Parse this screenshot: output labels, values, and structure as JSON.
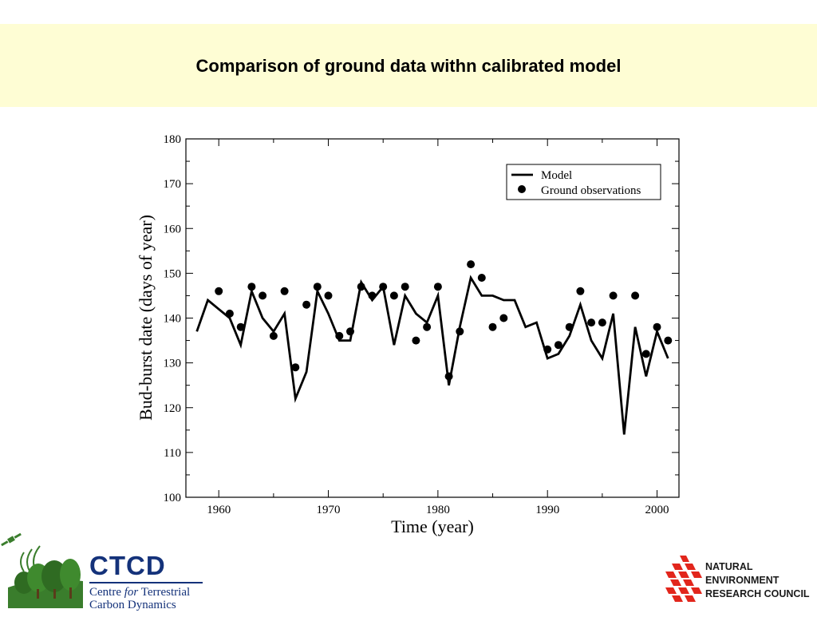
{
  "slide": {
    "title": "Comparison of ground data withn calibrated model"
  },
  "chart_data": {
    "type": "line",
    "title": "",
    "xlabel": "Time (year)",
    "ylabel": "Bud-burst date (days of year)",
    "xlim": [
      1957,
      2002
    ],
    "ylim": [
      100,
      180
    ],
    "xticks": [
      1960,
      1970,
      1980,
      1990,
      2000
    ],
    "yticks": [
      100,
      110,
      120,
      130,
      140,
      150,
      160,
      170,
      180
    ],
    "grid": false,
    "legend_position": "top-right",
    "series": [
      {
        "name": "Model",
        "style": "line",
        "x": [
          1958,
          1959,
          1960,
          1961,
          1962,
          1963,
          1964,
          1965,
          1966,
          1967,
          1968,
          1969,
          1970,
          1971,
          1972,
          1973,
          1974,
          1975,
          1976,
          1977,
          1978,
          1979,
          1980,
          1981,
          1982,
          1983,
          1984,
          1985,
          1986,
          1987,
          1988,
          1989,
          1990,
          1991,
          1992,
          1993,
          1994,
          1995,
          1996,
          1997,
          1998,
          1999,
          2000,
          2001
        ],
        "y": [
          137,
          144,
          142,
          140,
          134,
          146,
          140,
          137,
          141,
          122,
          128,
          146,
          141,
          135,
          135,
          148,
          144,
          147,
          134,
          145,
          141,
          139,
          145,
          125,
          138,
          149,
          145,
          145,
          144,
          144,
          138,
          139,
          131,
          132,
          136,
          143,
          135,
          131,
          141,
          114,
          138,
          127,
          137,
          131
        ]
      },
      {
        "name": "Ground observations",
        "style": "markers",
        "x": [
          1960,
          1961,
          1962,
          1963,
          1964,
          1965,
          1966,
          1967,
          1968,
          1969,
          1970,
          1971,
          1972,
          1973,
          1974,
          1975,
          1976,
          1977,
          1978,
          1979,
          1980,
          1981,
          1982,
          1983,
          1984,
          1985,
          1986,
          1990,
          1991,
          1992,
          1993,
          1994,
          1995,
          1996,
          1998,
          1999,
          2000,
          2001
        ],
        "y": [
          146,
          141,
          138,
          147,
          145,
          136,
          146,
          129,
          143,
          147,
          145,
          136,
          137,
          147,
          145,
          147,
          145,
          147,
          135,
          138,
          147,
          127,
          137,
          152,
          149,
          138,
          140,
          133,
          134,
          138,
          146,
          139,
          139,
          145,
          145,
          132,
          138,
          135
        ]
      }
    ]
  },
  "logos": {
    "ctcd": {
      "name": "CTCD",
      "line1_prefix": "Centre ",
      "line1_italic": "for",
      "line1_suffix": " Terrestrial",
      "line2": "Carbon Dynamics"
    },
    "nerc": {
      "line1": "NATURAL",
      "line2": "ENVIRONMENT",
      "line3": "RESEARCH COUNCIL"
    }
  },
  "colors": {
    "title_band": "#fefdd4",
    "ctcd_blue": "#14327a",
    "ctcd_green": "#3a7d2c",
    "nerc_red": "#e2261c"
  }
}
